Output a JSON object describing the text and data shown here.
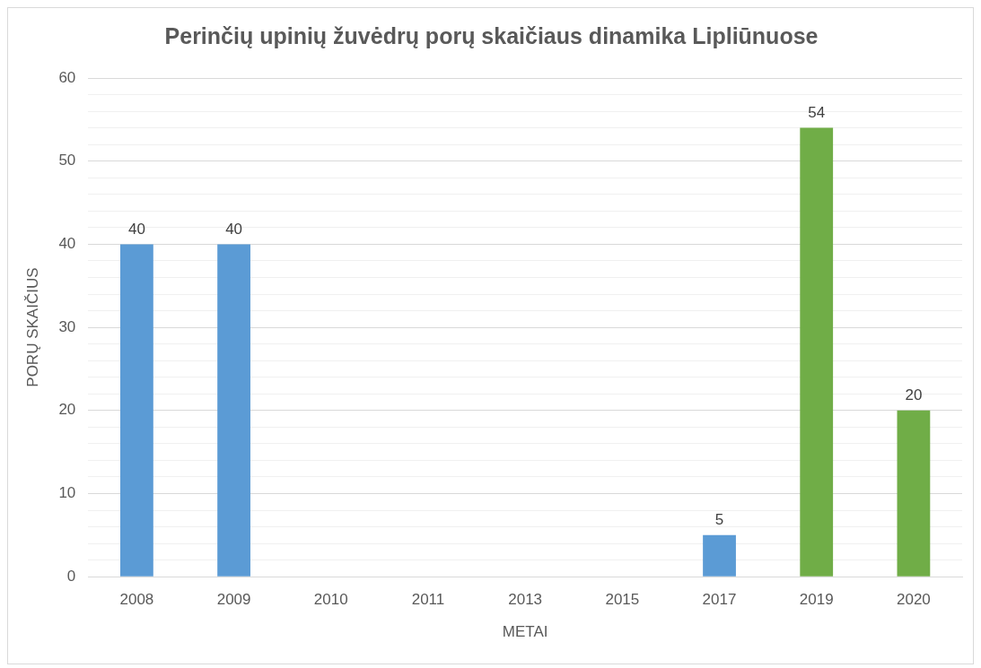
{
  "chart_data": {
    "type": "bar",
    "title": "Perinčių upinių žuvėdrų porų skaičiaus dinamika Lipliūnuose",
    "xlabel": "METAI",
    "ylabel": "PORŲ SKAIČIUS",
    "categories": [
      "2008",
      "2009",
      "2010",
      "2011",
      "2013",
      "2015",
      "2017",
      "2019",
      "2020"
    ],
    "values": [
      40,
      40,
      null,
      null,
      null,
      null,
      5,
      54,
      20
    ],
    "colors": [
      "#5b9bd5",
      "#5b9bd5",
      "#5b9bd5",
      "#5b9bd5",
      "#5b9bd5",
      "#5b9bd5",
      "#5b9bd5",
      "#70ad47",
      "#70ad47"
    ],
    "value_labels": [
      "40",
      "40",
      null,
      null,
      null,
      null,
      "5",
      "54",
      "20"
    ],
    "ylim": [
      0,
      60
    ],
    "yticks": [
      0,
      {
        "value": 2,
        "label": null
      },
      {
        "value": 4,
        "label": null
      },
      {
        "value": 6,
        "label": null
      },
      {
        "value": 8,
        "label": null
      },
      10,
      {
        "value": 12,
        "label": null
      },
      {
        "value": 14,
        "label": null
      },
      {
        "value": 16,
        "label": null
      },
      {
        "value": 18,
        "label": null
      },
      20,
      {
        "value": 22,
        "label": null
      },
      {
        "value": 24,
        "label": null
      },
      {
        "value": 26,
        "label": null
      },
      {
        "value": 28,
        "label": null
      },
      30,
      {
        "value": 32,
        "label": null
      },
      {
        "value": 34,
        "label": null
      },
      {
        "value": 36,
        "label": null
      },
      {
        "value": 38,
        "label": null
      },
      40,
      {
        "value": 42,
        "label": null
      },
      {
        "value": 44,
        "label": null
      },
      {
        "value": 46,
        "label": null
      },
      {
        "value": 48,
        "label": null
      },
      50,
      {
        "value": 52,
        "label": null
      },
      {
        "value": 54,
        "label": null
      },
      {
        "value": 56,
        "label": null
      },
      {
        "value": 58,
        "label": null
      },
      60
    ],
    "grid": "y",
    "legend": false
  }
}
